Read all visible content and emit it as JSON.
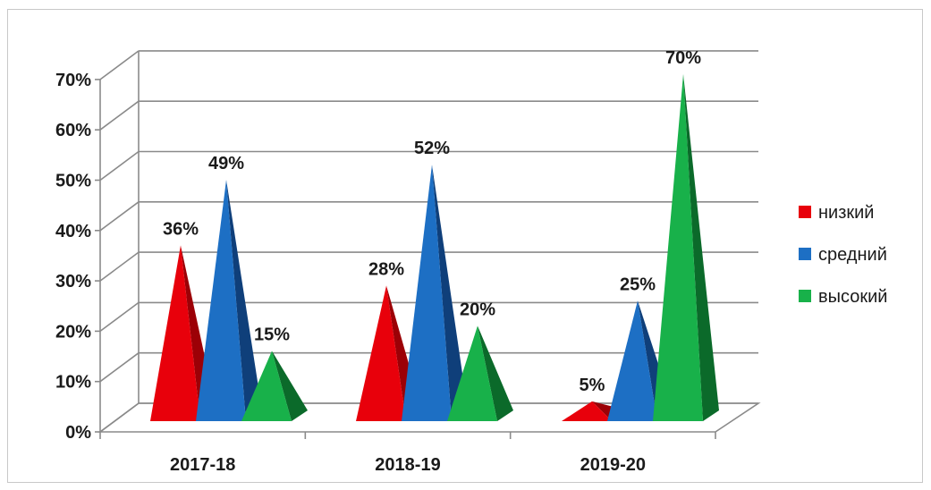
{
  "chart_data": {
    "type": "bar",
    "style": "3d-pyramid",
    "categories": [
      "2017-18",
      "2018-19",
      "2019-20"
    ],
    "series": [
      {
        "name": "низкий",
        "values": [
          36,
          28,
          5
        ],
        "labels": [
          "36%",
          "28%",
          "5%"
        ],
        "color": "#e8000b",
        "dark": "#9c0006"
      },
      {
        "name": "средний",
        "values": [
          49,
          52,
          25
        ],
        "labels": [
          "49%",
          "52%",
          "25%"
        ],
        "color": "#1d6fc4",
        "dark": "#0f3f7a"
      },
      {
        "name": "высокий",
        "values": [
          15,
          20,
          70
        ],
        "labels": [
          "15%",
          "20%",
          "70%"
        ],
        "color": "#18b14a",
        "dark": "#0b6a2a"
      }
    ],
    "yticks": [
      "0%",
      "10%",
      "20%",
      "30%",
      "40%",
      "50%",
      "60%",
      "70%"
    ],
    "ylim": [
      0,
      70
    ],
    "grid": true,
    "legend": "right"
  }
}
